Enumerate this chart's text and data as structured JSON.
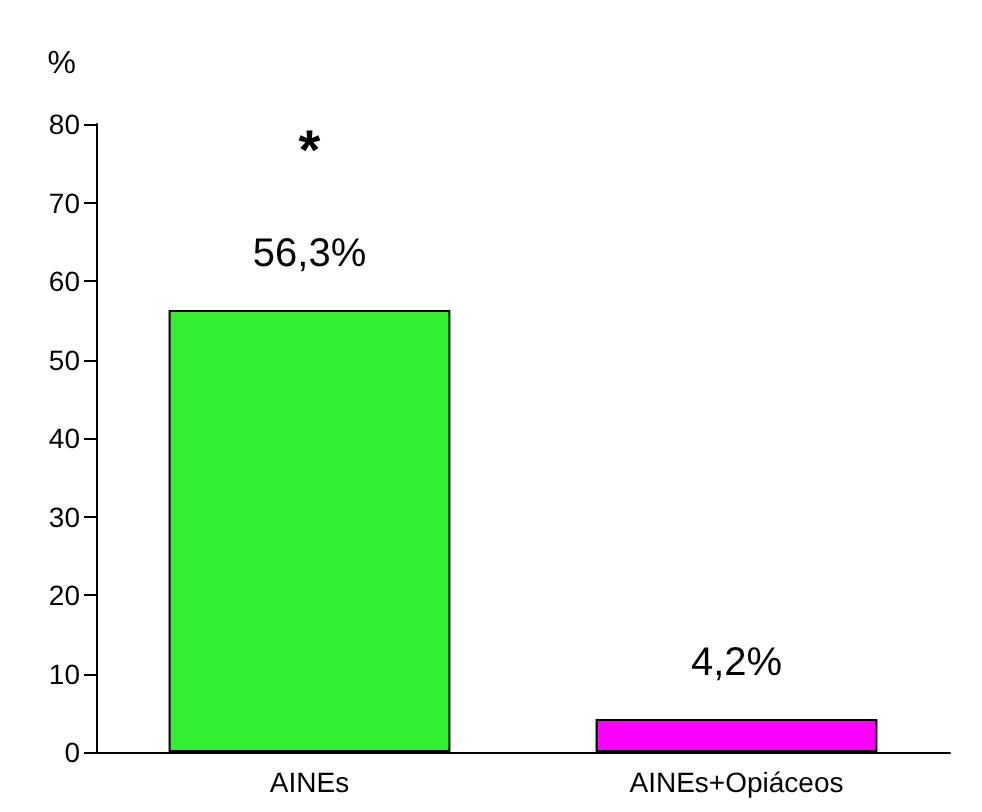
{
  "chart_data": {
    "type": "bar",
    "ylabel": "%",
    "categories": [
      "AINEs",
      "AINEs+Opiáceos"
    ],
    "values": [
      56.3,
      4.2
    ],
    "colors": [
      "#33ee33",
      "#ff00ff"
    ],
    "value_labels": [
      "56,3%",
      "4,2%"
    ],
    "annotations": [
      "*"
    ],
    "ylim": [
      0,
      80
    ],
    "yticks": [
      0,
      10,
      20,
      30,
      40,
      50,
      60,
      70,
      80
    ],
    "grid": false
  }
}
